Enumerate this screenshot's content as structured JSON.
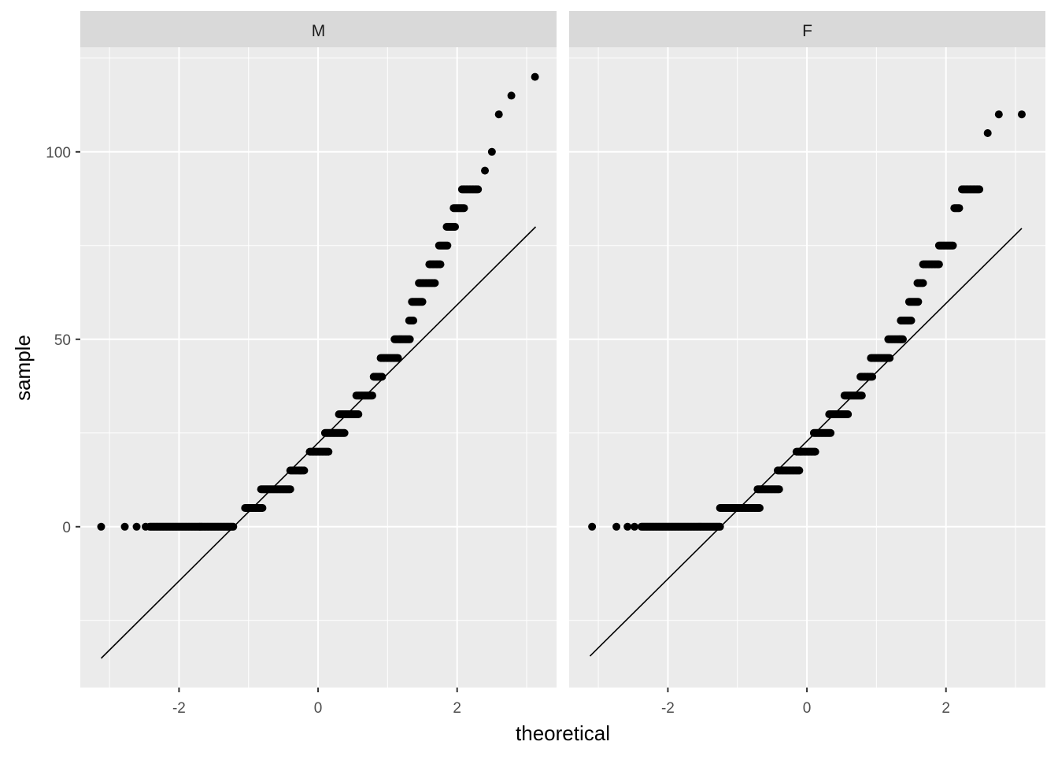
{
  "chart_data": {
    "type": "scatter",
    "subtype": "qq-plot-faceted",
    "xlabel": "theoretical",
    "ylabel": "sample",
    "xlim": [
      -3.42,
      3.43
    ],
    "ylim": [
      -42.9,
      127.9
    ],
    "x_ticks": [
      -2,
      0,
      2
    ],
    "x_tick_labels": [
      "-2",
      "0",
      "2"
    ],
    "y_ticks": [
      0,
      50,
      100
    ],
    "y_tick_labels": [
      "0",
      "50",
      "100"
    ],
    "grid": true,
    "colors": {
      "panel": "#ebebeb",
      "strip": "#d9d9d9",
      "grid": "#ffffff",
      "points": "#000000",
      "line": "#000000"
    },
    "facets": [
      {
        "strip": "M",
        "points_single": [
          [
            -3.12,
            0
          ],
          [
            -2.78,
            0
          ],
          [
            -2.61,
            0
          ],
          [
            -2.48,
            0
          ],
          [
            2.4,
            95
          ],
          [
            2.5,
            100
          ],
          [
            2.6,
            110
          ],
          [
            2.78,
            115
          ],
          [
            3.12,
            120
          ]
        ],
        "runs": [
          {
            "sample": 0,
            "from": -2.42,
            "to": -1.22
          },
          {
            "sample": 5,
            "from": -1.05,
            "to": -0.8
          },
          {
            "sample": 10,
            "from": -0.82,
            "to": -0.4
          },
          {
            "sample": 15,
            "from": -0.4,
            "to": -0.2
          },
          {
            "sample": 20,
            "from": -0.12,
            "to": 0.15
          },
          {
            "sample": 25,
            "from": 0.1,
            "to": 0.38
          },
          {
            "sample": 30,
            "from": 0.3,
            "to": 0.58
          },
          {
            "sample": 35,
            "from": 0.55,
            "to": 0.78
          },
          {
            "sample": 40,
            "from": 0.8,
            "to": 0.92
          },
          {
            "sample": 45,
            "from": 0.9,
            "to": 1.15
          },
          {
            "sample": 50,
            "from": 1.1,
            "to": 1.32
          },
          {
            "sample": 55,
            "from": 1.31,
            "to": 1.37
          },
          {
            "sample": 60,
            "from": 1.35,
            "to": 1.5
          },
          {
            "sample": 65,
            "from": 1.45,
            "to": 1.68
          },
          {
            "sample": 70,
            "from": 1.6,
            "to": 1.76
          },
          {
            "sample": 75,
            "from": 1.74,
            "to": 1.86
          },
          {
            "sample": 80,
            "from": 1.85,
            "to": 1.97
          },
          {
            "sample": 85,
            "from": 1.95,
            "to": 2.1
          },
          {
            "sample": 90,
            "from": 2.07,
            "to": 2.3
          }
        ],
        "qq_line": [
          [
            -3.12,
            -35.1
          ],
          [
            3.13,
            80.0
          ]
        ]
      },
      {
        "strip": "F",
        "points_single": [
          [
            -3.09,
            0
          ],
          [
            -2.74,
            0
          ],
          [
            -2.58,
            0
          ],
          [
            -2.48,
            0
          ],
          [
            2.6,
            105
          ],
          [
            2.76,
            110
          ],
          [
            3.09,
            110
          ]
        ],
        "runs": [
          {
            "sample": 0,
            "from": -2.38,
            "to": -1.25
          },
          {
            "sample": 5,
            "from": -1.25,
            "to": -0.68
          },
          {
            "sample": 10,
            "from": -0.71,
            "to": -0.4
          },
          {
            "sample": 15,
            "from": -0.42,
            "to": -0.11
          },
          {
            "sample": 20,
            "from": -0.15,
            "to": 0.12
          },
          {
            "sample": 25,
            "from": 0.1,
            "to": 0.34
          },
          {
            "sample": 30,
            "from": 0.32,
            "to": 0.59
          },
          {
            "sample": 35,
            "from": 0.54,
            "to": 0.79
          },
          {
            "sample": 40,
            "from": 0.77,
            "to": 0.94
          },
          {
            "sample": 45,
            "from": 0.92,
            "to": 1.19
          },
          {
            "sample": 50,
            "from": 1.17,
            "to": 1.38
          },
          {
            "sample": 55,
            "from": 1.35,
            "to": 1.5
          },
          {
            "sample": 60,
            "from": 1.47,
            "to": 1.6
          },
          {
            "sample": 65,
            "from": 1.59,
            "to": 1.67
          },
          {
            "sample": 70,
            "from": 1.67,
            "to": 1.9
          },
          {
            "sample": 75,
            "from": 1.9,
            "to": 2.1
          },
          {
            "sample": 85,
            "from": 2.12,
            "to": 2.19
          },
          {
            "sample": 90,
            "from": 2.23,
            "to": 2.48
          }
        ],
        "qq_line": [
          [
            -3.12,
            -34.5
          ],
          [
            3.09,
            79.6
          ]
        ]
      }
    ]
  }
}
